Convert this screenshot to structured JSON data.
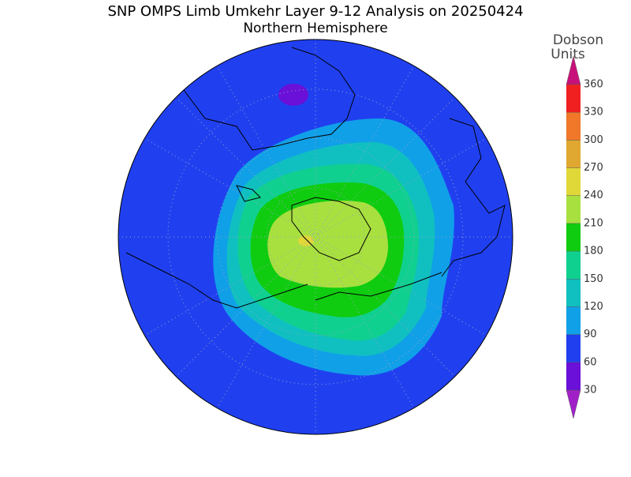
{
  "header": {
    "title": "SNP OMPS Limb Umkehr Layer 9-12 Analysis on 20250424",
    "subtitle": "Northern Hemisphere"
  },
  "colorbar": {
    "label": [
      "Dobson",
      "Units"
    ],
    "lim": [
      30,
      360
    ],
    "ticks": [
      30,
      60,
      90,
      120,
      150,
      180,
      210,
      240,
      270,
      300,
      330,
      360
    ],
    "colors": [
      "#a020c8",
      "#6a10d8",
      "#2040f0",
      "#10a0e8",
      "#10c0c0",
      "#10d090",
      "#10cc10",
      "#a8e040",
      "#e0d838",
      "#e0a830",
      "#f07828",
      "#f02020",
      "#c8107a"
    ]
  }
}
